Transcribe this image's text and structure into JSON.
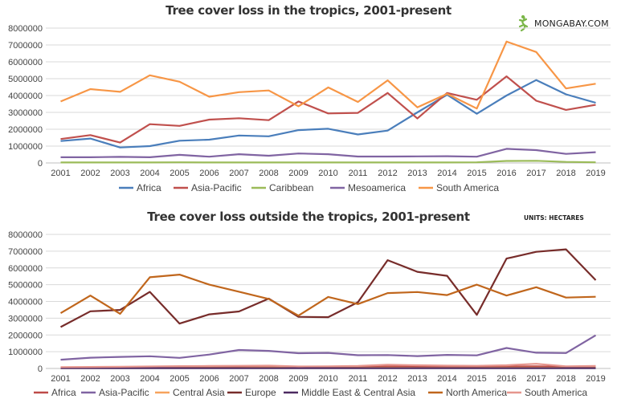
{
  "brand": {
    "name": "MONGABAY.COM",
    "logo_color": "#7ab648"
  },
  "units_note": "UNITS: HECTARES",
  "chart_data": [
    {
      "type": "line",
      "title": "Tree cover loss in the tropics, 2001-present",
      "x": [
        "2001",
        "2002",
        "2003",
        "2004",
        "2005",
        "2006",
        "2007",
        "2008",
        "2009",
        "2010",
        "2011",
        "2012",
        "2013",
        "2014",
        "2015",
        "2016",
        "2017",
        "2018",
        "2019"
      ],
      "ylim": [
        0,
        8000000
      ],
      "yticks": [
        0,
        1000000,
        2000000,
        3000000,
        4000000,
        5000000,
        6000000,
        7000000,
        8000000
      ],
      "grid": true,
      "legend_position": "bottom",
      "series": [
        {
          "name": "Africa",
          "color": "#4a7ebb",
          "values": [
            1300000,
            1450000,
            920000,
            1000000,
            1320000,
            1380000,
            1630000,
            1580000,
            1950000,
            2030000,
            1690000,
            1920000,
            3000000,
            4050000,
            2920000,
            4000000,
            4920000,
            4070000,
            3570000
          ]
        },
        {
          "name": "Asia-Pacific",
          "color": "#c0504d",
          "values": [
            1420000,
            1650000,
            1210000,
            2300000,
            2200000,
            2570000,
            2650000,
            2540000,
            3650000,
            2940000,
            2970000,
            4150000,
            2640000,
            4150000,
            3750000,
            5140000,
            3690000,
            3150000,
            3450000
          ]
        },
        {
          "name": "Caribbean",
          "color": "#9bbb59",
          "values": [
            30000,
            30000,
            30000,
            30000,
            40000,
            30000,
            30000,
            30000,
            30000,
            30000,
            30000,
            30000,
            30000,
            30000,
            40000,
            120000,
            130000,
            60000,
            40000
          ]
        },
        {
          "name": "Mesoamerica",
          "color": "#8064a2",
          "values": [
            340000,
            340000,
            360000,
            340000,
            480000,
            370000,
            520000,
            430000,
            560000,
            520000,
            380000,
            380000,
            390000,
            400000,
            370000,
            840000,
            760000,
            540000,
            640000
          ]
        },
        {
          "name": "South America",
          "color": "#f79646",
          "values": [
            3650000,
            4380000,
            4220000,
            5200000,
            4820000,
            3930000,
            4200000,
            4300000,
            3360000,
            4480000,
            3620000,
            4900000,
            3300000,
            4100000,
            3230000,
            7200000,
            6580000,
            4420000,
            4700000
          ]
        }
      ]
    },
    {
      "type": "line",
      "title": "Tree cover loss outside the tropics, 2001-present",
      "x": [
        "2001",
        "2002",
        "2003",
        "2004",
        "2005",
        "2006",
        "2007",
        "2008",
        "2009",
        "2010",
        "2011",
        "2012",
        "2013",
        "2014",
        "2015",
        "2016",
        "2017",
        "2018",
        "2019"
      ],
      "ylim": [
        0,
        8000000
      ],
      "yticks": [
        0,
        1000000,
        2000000,
        3000000,
        4000000,
        5000000,
        6000000,
        7000000,
        8000000
      ],
      "grid": true,
      "legend_position": "bottom",
      "series": [
        {
          "name": "Africa",
          "color": "#be4b48",
          "values": [
            50000,
            60000,
            70000,
            80000,
            90000,
            90000,
            100000,
            110000,
            90000,
            90000,
            100000,
            120000,
            110000,
            110000,
            110000,
            120000,
            130000,
            100000,
            110000
          ]
        },
        {
          "name": "Asia-Pacific",
          "color": "#8064a2",
          "values": [
            520000,
            640000,
            690000,
            730000,
            630000,
            830000,
            1100000,
            1050000,
            910000,
            930000,
            790000,
            800000,
            740000,
            810000,
            780000,
            1220000,
            940000,
            920000,
            1980000
          ]
        },
        {
          "name": "Central Asia",
          "color": "#f7a35c",
          "values": [
            30000,
            30000,
            30000,
            40000,
            40000,
            40000,
            40000,
            50000,
            40000,
            40000,
            40000,
            50000,
            40000,
            40000,
            40000,
            50000,
            50000,
            40000,
            40000
          ]
        },
        {
          "name": "Europe",
          "color": "#772c2a",
          "values": [
            2470000,
            3410000,
            3490000,
            4570000,
            2680000,
            3230000,
            3400000,
            4170000,
            3080000,
            3060000,
            3950000,
            6460000,
            5770000,
            5530000,
            3200000,
            6560000,
            6960000,
            7110000,
            5270000
          ]
        },
        {
          "name": "Middle East & Central Asia",
          "color": "#4d2a61",
          "values": [
            20000,
            20000,
            20000,
            20000,
            20000,
            20000,
            20000,
            20000,
            20000,
            20000,
            20000,
            20000,
            20000,
            20000,
            20000,
            20000,
            20000,
            20000,
            20000
          ]
        },
        {
          "name": "North America",
          "color": "#c0661c",
          "values": [
            3300000,
            4350000,
            3260000,
            5440000,
            5600000,
            5000000,
            4580000,
            4150000,
            3150000,
            4270000,
            3840000,
            4500000,
            4560000,
            4380000,
            5000000,
            4350000,
            4850000,
            4230000,
            4280000
          ]
        },
        {
          "name": "South America",
          "color": "#e6968e",
          "values": [
            80000,
            90000,
            100000,
            120000,
            140000,
            150000,
            160000,
            170000,
            120000,
            130000,
            150000,
            220000,
            190000,
            170000,
            160000,
            190000,
            280000,
            130000,
            150000
          ]
        }
      ]
    }
  ]
}
